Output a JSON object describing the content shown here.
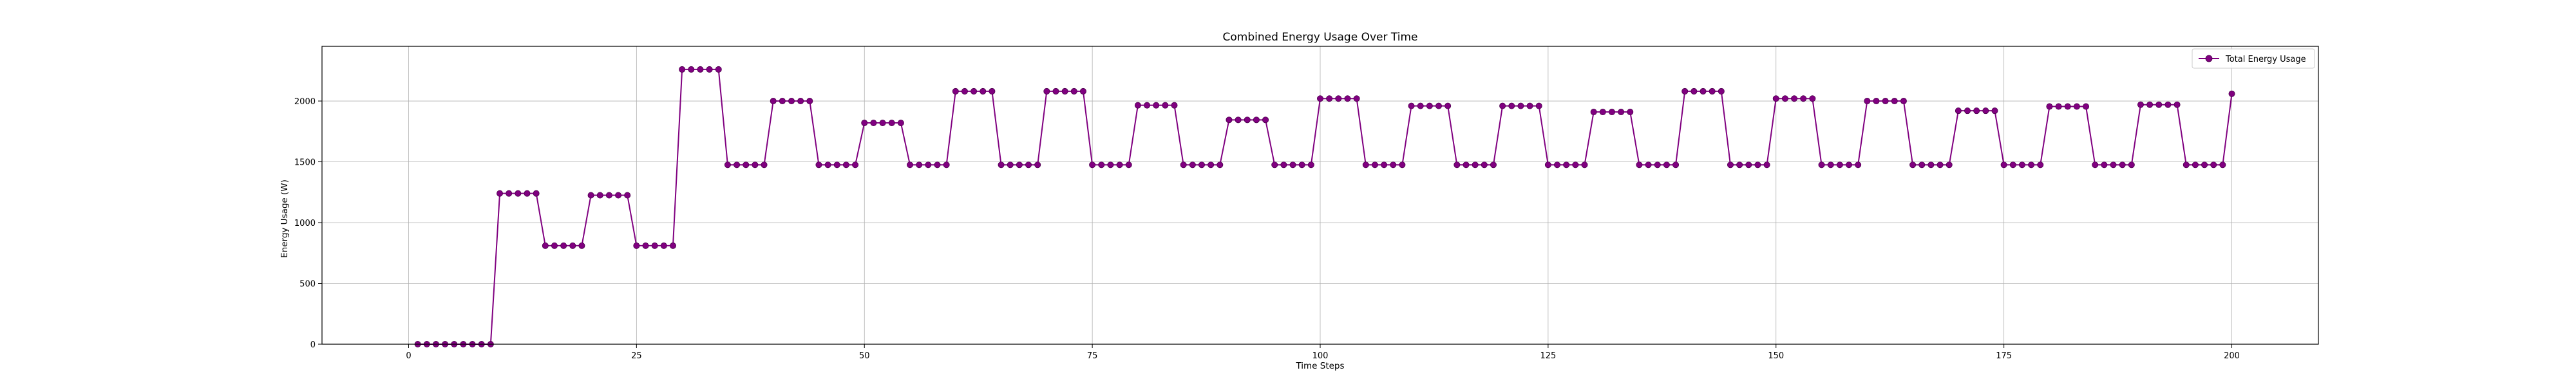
{
  "chart_data": {
    "type": "line",
    "title": "Combined Energy Usage Over Time",
    "xlabel": "Time Steps",
    "ylabel": "Energy Usage (W)",
    "xlim": [
      -9.5,
      209.5
    ],
    "ylim": [
      0,
      2450
    ],
    "xticks": [
      0,
      25,
      50,
      75,
      100,
      125,
      150,
      175,
      200
    ],
    "yticks": [
      0,
      500,
      1000,
      1500,
      2000
    ],
    "grid": true,
    "legend_position": "top-right",
    "series": [
      {
        "name": "Total Energy Usage",
        "color": "#800080",
        "marker": "circle",
        "x": [
          1,
          2,
          3,
          4,
          5,
          6,
          7,
          8,
          9,
          10,
          11,
          12,
          13,
          14,
          15,
          16,
          17,
          18,
          19,
          20,
          21,
          22,
          23,
          24,
          25,
          26,
          27,
          28,
          29,
          30,
          31,
          32,
          33,
          34,
          35,
          36,
          37,
          38,
          39,
          40,
          41,
          42,
          43,
          44,
          45,
          46,
          47,
          48,
          49,
          50,
          51,
          52,
          53,
          54,
          55,
          56,
          57,
          58,
          59,
          60,
          61,
          62,
          63,
          64,
          65,
          66,
          67,
          68,
          69,
          70,
          71,
          72,
          73,
          74,
          75,
          76,
          77,
          78,
          79,
          80,
          81,
          82,
          83,
          84,
          85,
          86,
          87,
          88,
          89,
          90,
          91,
          92,
          93,
          94,
          95,
          96,
          97,
          98,
          99,
          100,
          101,
          102,
          103,
          104,
          105,
          106,
          107,
          108,
          109,
          110,
          111,
          112,
          113,
          114,
          115,
          116,
          117,
          118,
          119,
          120,
          121,
          122,
          123,
          124,
          125,
          126,
          127,
          128,
          129,
          130,
          131,
          132,
          133,
          134,
          135,
          136,
          137,
          138,
          139,
          140,
          141,
          142,
          143,
          144,
          145,
          146,
          147,
          148,
          149,
          150,
          151,
          152,
          153,
          154,
          155,
          156,
          157,
          158,
          159,
          160,
          161,
          162,
          163,
          164,
          165,
          166,
          167,
          168,
          169,
          170,
          171,
          172,
          173,
          174,
          175,
          176,
          177,
          178,
          179,
          180,
          181,
          182,
          183,
          184,
          185,
          186,
          187,
          188,
          189,
          190,
          191,
          192,
          193,
          194,
          195,
          196,
          197,
          198,
          199,
          200
        ],
        "y": [
          0,
          0,
          0,
          0,
          0,
          0,
          0,
          0,
          0,
          1240,
          1240,
          1240,
          1240,
          1240,
          810,
          810,
          810,
          810,
          810,
          1225,
          1225,
          1225,
          1225,
          1225,
          810,
          810,
          810,
          810,
          810,
          2260,
          2260,
          2260,
          2260,
          2260,
          1475,
          1475,
          1475,
          1475,
          1475,
          2000,
          2000,
          2000,
          2000,
          2000,
          1475,
          1475,
          1475,
          1475,
          1475,
          1820,
          1820,
          1820,
          1820,
          1820,
          1475,
          1475,
          1475,
          1475,
          1475,
          2080,
          2080,
          2080,
          2080,
          2080,
          1475,
          1475,
          1475,
          1475,
          1475,
          2080,
          2080,
          2080,
          2080,
          2080,
          1475,
          1475,
          1475,
          1475,
          1475,
          1965,
          1965,
          1965,
          1965,
          1965,
          1475,
          1475,
          1475,
          1475,
          1475,
          1845,
          1845,
          1845,
          1845,
          1845,
          1475,
          1475,
          1475,
          1475,
          1475,
          2020,
          2020,
          2020,
          2020,
          2020,
          1475,
          1475,
          1475,
          1475,
          1475,
          1960,
          1960,
          1960,
          1960,
          1960,
          1475,
          1475,
          1475,
          1475,
          1475,
          1960,
          1960,
          1960,
          1960,
          1960,
          1475,
          1475,
          1475,
          1475,
          1475,
          1910,
          1910,
          1910,
          1910,
          1910,
          1475,
          1475,
          1475,
          1475,
          1475,
          2080,
          2080,
          2080,
          2080,
          2080,
          1475,
          1475,
          1475,
          1475,
          1475,
          2020,
          2020,
          2020,
          2020,
          2020,
          1475,
          1475,
          1475,
          1475,
          1475,
          2000,
          2000,
          2000,
          2000,
          2000,
          1475,
          1475,
          1475,
          1475,
          1475,
          1920,
          1920,
          1920,
          1920,
          1920,
          1475,
          1475,
          1475,
          1475,
          1475,
          1955,
          1955,
          1955,
          1955,
          1955,
          1475,
          1475,
          1475,
          1475,
          1475,
          1970,
          1970,
          1970,
          1970,
          1970,
          1475,
          1475,
          1475,
          1475,
          1475,
          2060
        ]
      }
    ]
  }
}
